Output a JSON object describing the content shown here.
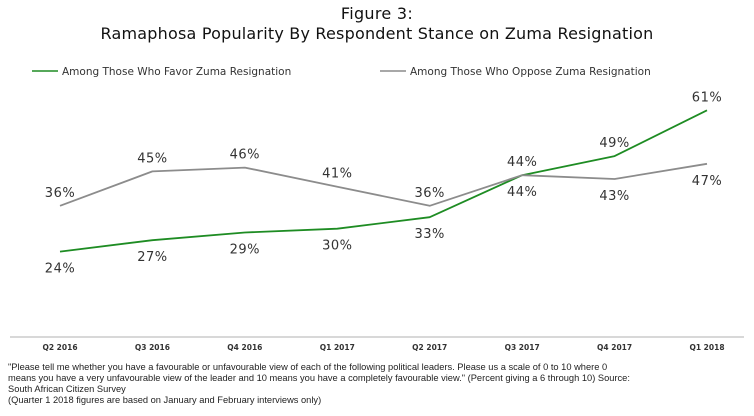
{
  "figure": {
    "title": "Figure 3:",
    "subtitle": "Ramaphosa Popularity By Respondent Stance on Zuma Resignation"
  },
  "chart_data": {
    "type": "line",
    "categories": [
      "Q2 2016",
      "Q3 2016",
      "Q4 2016",
      "Q1 2017",
      "Q2 2017",
      "Q3 2017",
      "Q4 2017",
      "Q1 2018"
    ],
    "ylim": [
      15,
      65
    ],
    "grid": false,
    "legend_position": "top",
    "series": [
      {
        "name": "Among Those Who Favor Zuma Resignation",
        "color": "#1e8c23",
        "values": [
          24,
          27,
          29,
          30,
          33,
          44,
          49,
          61
        ],
        "labels": [
          "24%",
          "27%",
          "29%",
          "30%",
          "33%",
          "44%",
          "49%",
          "61%"
        ]
      },
      {
        "name": "Among Those Who Oppose Zuma Resignation",
        "color": "#8c8c8c",
        "values": [
          36,
          45,
          46,
          41,
          36,
          44,
          43,
          47
        ],
        "labels": [
          "36%",
          "45%",
          "46%",
          "41%",
          "36%",
          "44%",
          "43%",
          "47%"
        ]
      }
    ]
  },
  "footnote": {
    "line1": "\"Please tell me whether you have a favourable or unfavourable view of each of the following political leaders. Please us a scale of 0 to 10 where 0",
    "line2": "means you have a very unfavourable view of the leader and 10 means you have a completely favourable view.\" (Percent giving a 6 through 10) Source:",
    "line3": "South African Citizen Survey",
    "line4": "(Quarter 1 2018 figures are based on January and February interviews only)"
  }
}
